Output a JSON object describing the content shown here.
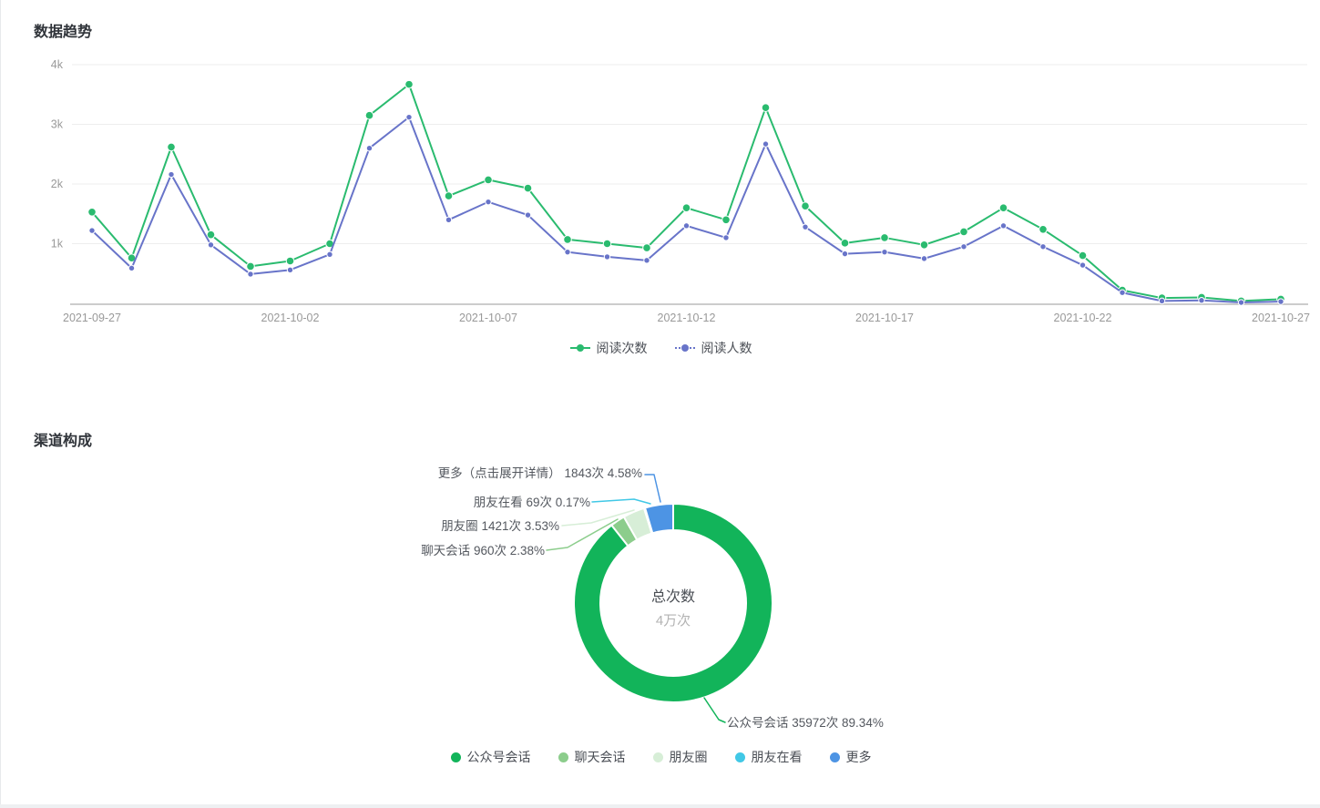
{
  "trend_section": {
    "title": "数据趋势"
  },
  "channel_section": {
    "title": "渠道构成"
  },
  "chart_data": [
    {
      "type": "line",
      "title": "数据趋势",
      "x": [
        "2021-09-27",
        "2021-09-28",
        "2021-09-29",
        "2021-09-30",
        "2021-10-01",
        "2021-10-02",
        "2021-10-03",
        "2021-10-04",
        "2021-10-05",
        "2021-10-06",
        "2021-10-07",
        "2021-10-08",
        "2021-10-09",
        "2021-10-10",
        "2021-10-11",
        "2021-10-12",
        "2021-10-13",
        "2021-10-14",
        "2021-10-15",
        "2021-10-16",
        "2021-10-17",
        "2021-10-18",
        "2021-10-19",
        "2021-10-20",
        "2021-10-21",
        "2021-10-22",
        "2021-10-23",
        "2021-10-24",
        "2021-10-25",
        "2021-10-26",
        "2021-10-27"
      ],
      "x_tick_labels": [
        "2021-09-27",
        "2021-10-02",
        "2021-10-07",
        "2021-10-12",
        "2021-10-17",
        "2021-10-22",
        "2021-10-27"
      ],
      "y_ticks": [
        "1k",
        "2k",
        "3k",
        "4k"
      ],
      "ylim": [
        0,
        4000
      ],
      "grid": true,
      "legend_position": "bottom",
      "series": [
        {
          "name": "阅读次数",
          "color": "#2abb6f",
          "values": [
            1530,
            760,
            2620,
            1150,
            620,
            710,
            1000,
            3150,
            3670,
            1800,
            2070,
            1930,
            1070,
            1000,
            930,
            1600,
            1400,
            3280,
            1630,
            1010,
            1100,
            980,
            1200,
            1600,
            1240,
            800,
            220,
            90,
            100,
            40,
            70
          ]
        },
        {
          "name": "阅读人数",
          "color": "#6874c9",
          "values": [
            1220,
            590,
            2160,
            980,
            490,
            560,
            820,
            2600,
            3120,
            1400,
            1700,
            1480,
            860,
            780,
            720,
            1300,
            1100,
            2670,
            1280,
            830,
            860,
            750,
            950,
            1300,
            950,
            640,
            180,
            40,
            50,
            15,
            30
          ]
        }
      ]
    },
    {
      "type": "pie",
      "title": "渠道构成",
      "donut": true,
      "center": {
        "label": "总次数",
        "value": "4万次"
      },
      "total_value": 40265,
      "slices": [
        {
          "name": "公众号会话",
          "value": 35972,
          "percent": "89.34%",
          "color": "#12b45a",
          "label": "公众号会话 35972次 89.34%"
        },
        {
          "name": "聊天会话",
          "value": 960,
          "percent": "2.38%",
          "color": "#8ccd8c",
          "label": "聊天会话 960次 2.38%"
        },
        {
          "name": "朋友圈",
          "value": 1421,
          "percent": "3.53%",
          "color": "#d7eed7",
          "label": "朋友圈 1421次 3.53%"
        },
        {
          "name": "朋友在看",
          "value": 69,
          "percent": "0.17%",
          "color": "#41c8e6",
          "label": "朋友在看 69次 0.17%"
        },
        {
          "name": "更多",
          "value": 1843,
          "percent": "4.58%",
          "color": "#4d94e4",
          "label": "更多（点击展开详情） 1843次 4.58%"
        }
      ]
    }
  ]
}
